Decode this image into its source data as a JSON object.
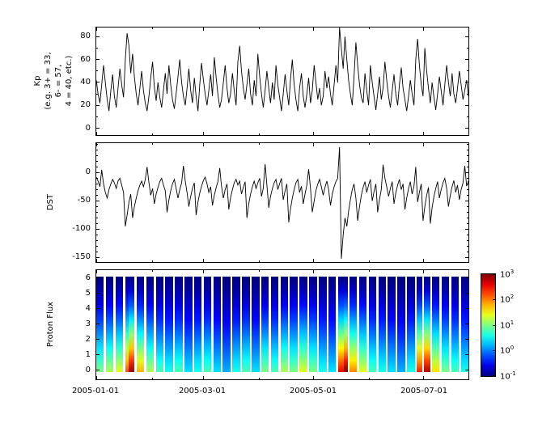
{
  "figure": {
    "background": "#ffffff",
    "line_color": "#000000"
  },
  "x_axis": {
    "tick_labels": [
      "2005-01-01",
      "2005-03-01",
      "2005-05-01",
      "2005-07-01"
    ],
    "tick_days": [
      0,
      59,
      120,
      181
    ],
    "minor_days": [
      31,
      90,
      151
    ],
    "total_days": 206
  },
  "chart_data": [
    {
      "type": "line",
      "name": "Kp",
      "ylabel_lines": [
        "Kp",
        "(e.g. 3+ = 33,",
        "6- = 57,",
        "4 = 40, etc.)"
      ],
      "yticks": [
        0,
        20,
        40,
        60,
        80
      ],
      "ylim": [
        -6,
        88
      ],
      "line_color": "#000000",
      "x_start": "2005-01-01",
      "values": [
        42,
        30,
        22,
        38,
        55,
        40,
        25,
        15,
        33,
        47,
        28,
        18,
        35,
        52,
        38,
        27,
        60,
        83,
        72,
        48,
        65,
        45,
        30,
        20,
        35,
        50,
        33,
        22,
        15,
        28,
        44,
        58,
        36,
        24,
        40,
        27,
        18,
        33,
        48,
        30,
        55,
        38,
        25,
        17,
        30,
        45,
        60,
        40,
        28,
        20,
        35,
        52,
        33,
        22,
        44,
        28,
        15,
        38,
        57,
        42,
        30,
        20,
        33,
        47,
        28,
        62,
        45,
        30,
        18,
        25,
        40,
        55,
        35,
        22,
        30,
        48,
        33,
        20,
        58,
        72,
        50,
        35,
        25,
        38,
        52,
        30,
        20,
        42,
        28,
        65,
        45,
        30,
        18,
        33,
        50,
        35,
        22,
        40,
        25,
        55,
        38,
        27,
        15,
        30,
        47,
        33,
        20,
        43,
        60,
        38,
        25,
        15,
        35,
        48,
        28,
        18,
        30,
        44,
        22,
        33,
        55,
        40,
        25,
        35,
        20,
        28,
        50,
        35,
        45,
        30,
        20,
        38,
        55,
        40,
        88,
        70,
        52,
        80,
        60,
        42,
        30,
        20,
        45,
        75,
        55,
        38,
        27,
        22,
        48,
        33,
        20,
        55,
        40,
        28,
        16,
        30,
        45,
        25,
        35,
        58,
        42,
        28,
        18,
        33,
        47,
        30,
        20,
        38,
        53,
        35,
        25,
        15,
        28,
        42,
        30,
        20,
        60,
        78,
        55,
        38,
        28,
        70,
        50,
        35,
        22,
        40,
        27,
        16,
        30,
        45,
        33,
        20,
        38,
        55,
        40,
        28,
        48,
        30,
        22,
        35,
        50,
        38,
        25,
        33,
        42,
        28
      ]
    },
    {
      "type": "line",
      "name": "DST",
      "ylabel": "DST",
      "yticks": [
        0,
        -50,
        -100,
        -150
      ],
      "ylim": [
        -158,
        52
      ],
      "line_color": "#000000",
      "values": [
        -8,
        -15,
        -25,
        5,
        -20,
        -35,
        -45,
        -30,
        -20,
        -12,
        -18,
        -28,
        -15,
        -10,
        -22,
        -35,
        -95,
        -75,
        -52,
        -38,
        -80,
        -60,
        -45,
        -32,
        -22,
        -15,
        -25,
        -12,
        10,
        -18,
        -40,
        -28,
        -55,
        -38,
        -26,
        -16,
        -10,
        -22,
        -32,
        -70,
        -48,
        -32,
        -20,
        -12,
        -28,
        -45,
        -30,
        -18,
        12,
        -15,
        -35,
        -60,
        -42,
        -28,
        -18,
        -75,
        -52,
        -36,
        -24,
        -14,
        -8,
        -20,
        -35,
        -25,
        -58,
        -40,
        -27,
        -16,
        8,
        -24,
        -45,
        -30,
        -20,
        -65,
        -44,
        -30,
        -18,
        -12,
        -22,
        -15,
        -38,
        -26,
        -16,
        -80,
        -55,
        -38,
        -25,
        -15,
        -28,
        -18,
        -10,
        -42,
        -28,
        15,
        -22,
        -62,
        -42,
        -28,
        -18,
        -12,
        -30,
        -20,
        -10,
        -48,
        -32,
        -20,
        -88,
        -64,
        -45,
        -30,
        -18,
        -12,
        -35,
        -24,
        -55,
        -38,
        -22,
        6,
        -28,
        -70,
        -50,
        -32,
        -20,
        -12,
        -25,
        -40,
        -26,
        -15,
        -30,
        -58,
        -38,
        -25,
        -16,
        -10,
        45,
        -152,
        -110,
        -80,
        -95,
        -68,
        -48,
        -30,
        -20,
        -45,
        -85,
        -60,
        -40,
        -26,
        -16,
        -35,
        -22,
        -12,
        -50,
        -34,
        -20,
        -70,
        -48,
        -30,
        14,
        -10,
        -25,
        -42,
        -28,
        -16,
        -55,
        -36,
        -22,
        -12,
        -30,
        -20,
        -65,
        -45,
        -28,
        -16,
        -38,
        -24,
        10,
        -52,
        -35,
        -20,
        -85,
        -60,
        -40,
        -26,
        -90,
        -62,
        -42,
        -28,
        -16,
        -45,
        -30,
        -18,
        -10,
        -28,
        -60,
        -40,
        -25,
        -14,
        -35,
        -22,
        -48,
        -30,
        -18,
        12,
        -24,
        -15
      ]
    },
    {
      "type": "heatmap",
      "name": "Proton Flux",
      "ylabel": "Proton Flux",
      "yticks": [
        0,
        1,
        2,
        3,
        4,
        5,
        6
      ],
      "ylim": [
        -0.6,
        6.5
      ],
      "colormap": "jet",
      "columns": [
        [
          4,
          0.5
        ],
        [
          1,
          null
        ],
        [
          4,
          0.55
        ],
        [
          1,
          null
        ],
        [
          4,
          0.6
        ],
        [
          1,
          null
        ],
        [
          2,
          0.8
        ],
        [
          3,
          0.97
        ],
        [
          1,
          null
        ],
        [
          4,
          0.7
        ],
        [
          1,
          null
        ],
        [
          4,
          0.55
        ],
        [
          1,
          null
        ],
        [
          4,
          0.45
        ],
        [
          1,
          null
        ],
        [
          4,
          0.4
        ],
        [
          1,
          null
        ],
        [
          4,
          0.45
        ],
        [
          1,
          null
        ],
        [
          4,
          0.35
        ],
        [
          1,
          null
        ],
        [
          4,
          0.4
        ],
        [
          1,
          null
        ],
        [
          4,
          0.45
        ],
        [
          1,
          null
        ],
        [
          4,
          0.35
        ],
        [
          1,
          null
        ],
        [
          4,
          0.3
        ],
        [
          1,
          null
        ],
        [
          4,
          0.4
        ],
        [
          1,
          null
        ],
        [
          4,
          0.45
        ],
        [
          1,
          null
        ],
        [
          4,
          0.35
        ],
        [
          1,
          null
        ],
        [
          4,
          0.5
        ],
        [
          1,
          null
        ],
        [
          4,
          0.45
        ],
        [
          1,
          null
        ],
        [
          4,
          0.55
        ],
        [
          1,
          null
        ],
        [
          4,
          0.5
        ],
        [
          1,
          null
        ],
        [
          4,
          0.6
        ],
        [
          1,
          null
        ],
        [
          4,
          0.5
        ],
        [
          1,
          null
        ],
        [
          4,
          0.4
        ],
        [
          1,
          null
        ],
        [
          4,
          0.35
        ],
        [
          1,
          null
        ],
        [
          3,
          0.9
        ],
        [
          2,
          1.0
        ],
        [
          1,
          null
        ],
        [
          4,
          0.75
        ],
        [
          1,
          null
        ],
        [
          4,
          0.6
        ],
        [
          1,
          null
        ],
        [
          4,
          0.45
        ],
        [
          1,
          null
        ],
        [
          4,
          0.4
        ],
        [
          1,
          null
        ],
        [
          4,
          0.35
        ],
        [
          1,
          null
        ],
        [
          4,
          0.3
        ],
        [
          1,
          null
        ],
        [
          4,
          0.4
        ],
        [
          1,
          null
        ],
        [
          3,
          0.85
        ],
        [
          1,
          null
        ],
        [
          3,
          0.95
        ],
        [
          1,
          null
        ],
        [
          4,
          0.65
        ],
        [
          1,
          null
        ],
        [
          4,
          0.5
        ],
        [
          1,
          null
        ],
        [
          4,
          0.45
        ],
        [
          1,
          null
        ],
        [
          4,
          0.4
        ]
      ],
      "colorbar": {
        "scale": "log",
        "tick_labels": [
          {
            "base": "10",
            "exp": "3"
          },
          {
            "base": "10",
            "exp": "2"
          },
          {
            "base": "10",
            "exp": "1"
          },
          {
            "base": "10",
            "exp": "0"
          },
          {
            "base": "10",
            "exp": "-1"
          }
        ]
      }
    }
  ]
}
